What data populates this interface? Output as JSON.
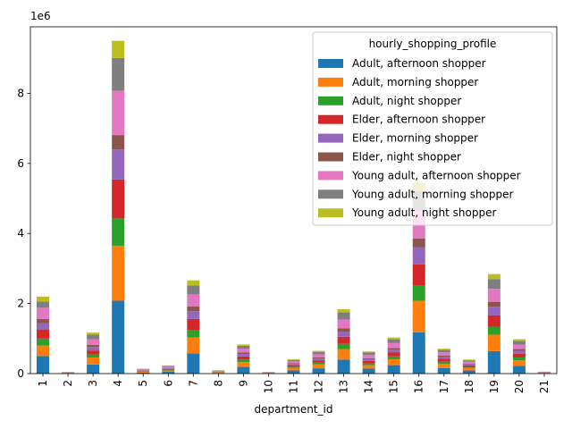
{
  "chart_data": {
    "type": "bar",
    "stacked": true,
    "xlabel": "department_id",
    "ylabel": "",
    "y_multiplier_label": "1e6",
    "ylim": [
      0,
      9900000
    ],
    "yticks": [
      0,
      2000000,
      4000000,
      6000000,
      8000000
    ],
    "ytick_labels": [
      "0",
      "2",
      "4",
      "6",
      "8"
    ],
    "legend_title": "hourly_shopping_profile",
    "legend_position": "top-right",
    "grid": false,
    "categories": [
      "1",
      "2",
      "3",
      "4",
      "5",
      "6",
      "7",
      "8",
      "9",
      "10",
      "11",
      "12",
      "13",
      "14",
      "15",
      "16",
      "17",
      "18",
      "19",
      "20",
      "21"
    ],
    "series": [
      {
        "name": "Adult, afternoon shopper",
        "color": "#1f77b4",
        "values": [
          500000,
          8000,
          260000,
          2080000,
          30000,
          50000,
          580000,
          20000,
          190000,
          8000,
          90000,
          150000,
          400000,
          140000,
          240000,
          1180000,
          160000,
          90000,
          640000,
          220000,
          12000
        ]
      },
      {
        "name": "Adult, morning shopper",
        "color": "#ff7f0e",
        "values": [
          300000,
          8000,
          200000,
          1570000,
          25000,
          40000,
          450000,
          15000,
          140000,
          8000,
          70000,
          110000,
          300000,
          100000,
          170000,
          900000,
          120000,
          70000,
          470000,
          160000,
          8000
        ]
      },
      {
        "name": "Adult, night shopper",
        "color": "#2ca02c",
        "values": [
          200000,
          4000,
          90000,
          780000,
          10000,
          15000,
          210000,
          8000,
          70000,
          4000,
          35000,
          50000,
          150000,
          50000,
          80000,
          430000,
          60000,
          30000,
          230000,
          80000,
          4000
        ]
      },
      {
        "name": "Elder, afternoon shopper",
        "color": "#d62728",
        "values": [
          260000,
          4000,
          110000,
          1110000,
          15000,
          25000,
          320000,
          10000,
          90000,
          4000,
          45000,
          70000,
          200000,
          70000,
          110000,
          610000,
          80000,
          45000,
          320000,
          110000,
          8000
        ]
      },
      {
        "name": "Elder, morning shopper",
        "color": "#9467bd",
        "values": [
          180000,
          4000,
          100000,
          860000,
          10000,
          20000,
          220000,
          8000,
          70000,
          4000,
          35000,
          50000,
          150000,
          50000,
          80000,
          490000,
          55000,
          30000,
          250000,
          80000,
          6000
        ]
      },
      {
        "name": "Elder, night shopper",
        "color": "#8c564b",
        "values": [
          120000,
          4000,
          60000,
          410000,
          8000,
          12000,
          140000,
          6000,
          40000,
          4000,
          20000,
          30000,
          90000,
          30000,
          50000,
          250000,
          35000,
          20000,
          140000,
          50000,
          4000
        ]
      },
      {
        "name": "Young adult, afternoon shopper",
        "color": "#e377c2",
        "values": [
          320000,
          6000,
          160000,
          1260000,
          20000,
          35000,
          340000,
          12000,
          110000,
          6000,
          55000,
          90000,
          250000,
          90000,
          140000,
          790000,
          95000,
          55000,
          370000,
          130000,
          6000
        ]
      },
      {
        "name": "Young adult, morning shopper",
        "color": "#7f7f7f",
        "values": [
          180000,
          6000,
          130000,
          940000,
          15000,
          25000,
          260000,
          10000,
          80000,
          6000,
          40000,
          70000,
          210000,
          70000,
          110000,
          560000,
          70000,
          40000,
          280000,
          100000,
          4000
        ]
      },
      {
        "name": "Young adult, night shopper",
        "color": "#bcbd22",
        "values": [
          140000,
          4000,
          60000,
          490000,
          7000,
          10000,
          140000,
          5000,
          40000,
          4000,
          20000,
          30000,
          90000,
          30000,
          50000,
          240000,
          35000,
          20000,
          140000,
          50000,
          3000
        ]
      }
    ]
  }
}
